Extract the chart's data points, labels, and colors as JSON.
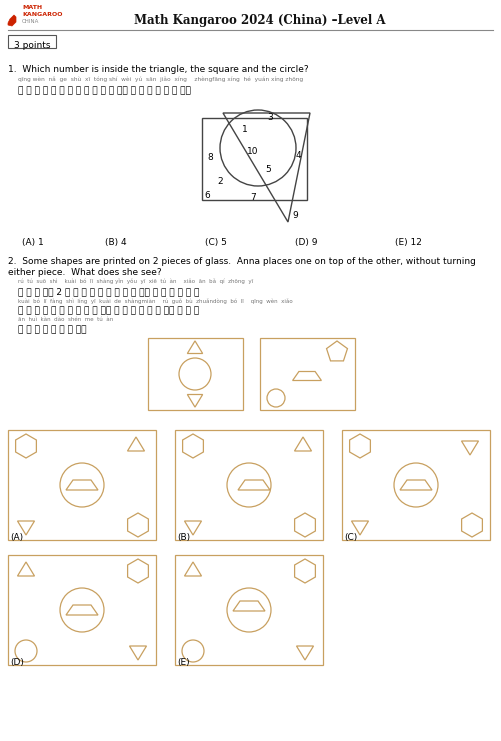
{
  "title": "Math Kangaroo 2024 (China) –Level A",
  "points_label": "3 points",
  "q1_text": "1.  Which number is inside the triangle, the square and the circle?",
  "q1_pinyin": "qīng wèn  nǎ  ge  shù  xī  tóng shí  wèi  yú  sān  jiǎo  xíng    zhèngfāng xíng  hé  yuán xíng zhōng",
  "q1_chinese": "请 问 哪 个 数 字 同 时 位 于 三 角 形， 正 方 形 和 圆 形 中？",
  "q1_answers": [
    "(A) 1",
    "(B) 4",
    "(C) 5",
    "(D) 9",
    "(E) 12"
  ],
  "q2_text": "2.  Some shapes are printed on 2 pieces of glass.  Anna places one on top of the other, without turning",
  "q2_text2": "either piece.  What does she see?",
  "q2_pinyin1": "rú  tú  suō  shì    kuài  bó  lī  shàng yǐn  yǒu  yī  xiē  tú  àn    xiǎo  ān  bǎ  qí  zhōng  yī",
  "q2_chinese1": "如 图 所 示， 2 块 玻 璃 上 印 有 一 些 图 案。 小 安 把 其 中 一",
  "q2_pinyin2": "kuài  bó  lī  fàng  shì  líng  yī  kuài  de  shàngmiàn    rú  guǒ  bù  zhuǎndòng  bó  lī    qīng  wèn  xiǎo",
  "q2_chinese2": "块 玻 璃 放 在 另 一 块 的 上 面。 如 果 不 转 动 玻 璃， 请 问 小",
  "q2_pinyin3": "ān  huì  kàn  dào  shén  me  tú  àn",
  "q2_chinese3": "安 会 看 到 什 么 图 案？",
  "bg_color": "#ffffff",
  "text_color": "#000000",
  "shape_color": "#c8a060",
  "q1_shape_color": "#444444",
  "header_line_color": "#888888",
  "logo_red": "#cc2200",
  "logo_gray": "#888888"
}
